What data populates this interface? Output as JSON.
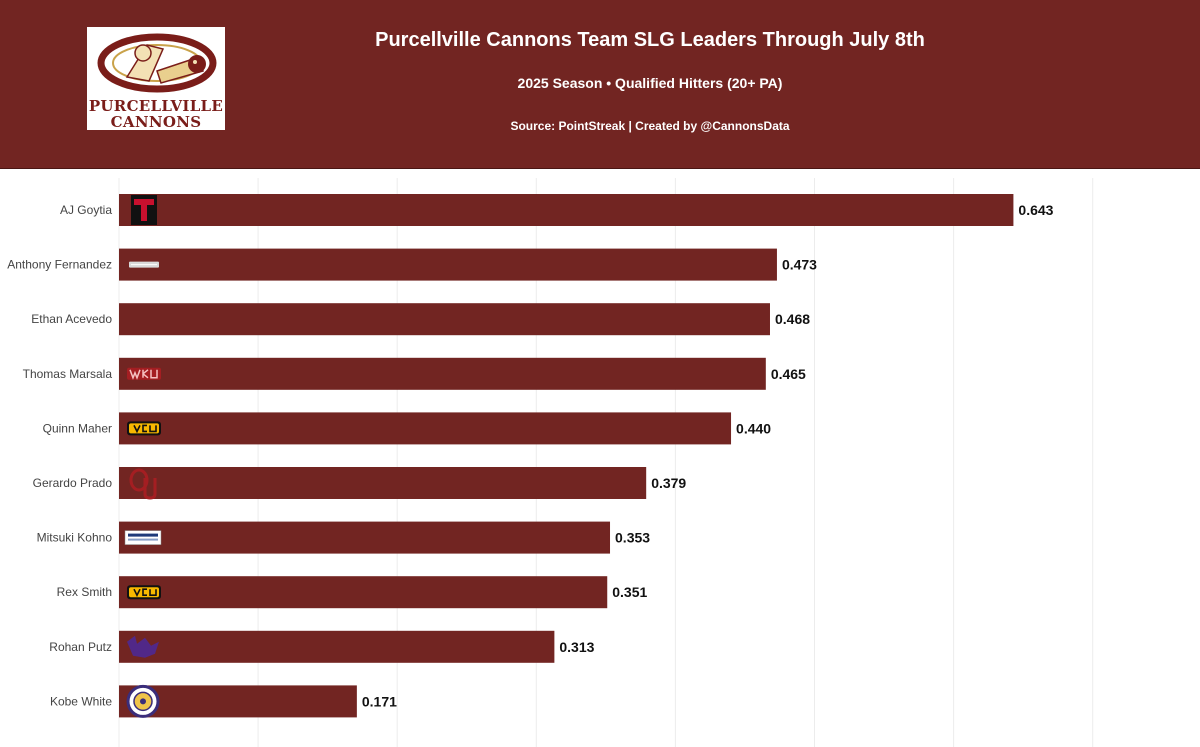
{
  "header": {
    "title": "Purcellville Cannons Team SLG Leaders Through July 8th",
    "subtitle": "2025 Season • Qualified Hitters (20+ PA)",
    "caption": "Source: PointStreak | Created by @CannonsData",
    "logo_line1": "PURCELLVILLE",
    "logo_line2": "CANNONS"
  },
  "colors": {
    "header_bg": "#722522",
    "bar": "#722522",
    "grid": "#ececec"
  },
  "chart_data": {
    "type": "bar",
    "orientation": "horizontal",
    "categories": [
      "AJ Goytia",
      "Anthony Fernandez",
      "Ethan Acevedo",
      "Thomas Marsala",
      "Quinn Maher",
      "Gerardo Prado",
      "Mitsuki Kohno",
      "Rex Smith",
      "Rohan Putz",
      "Kobe White"
    ],
    "values": [
      0.643,
      0.473,
      0.468,
      0.465,
      0.44,
      0.379,
      0.353,
      0.351,
      0.313,
      0.171
    ],
    "value_labels": [
      "0.643",
      "0.473",
      "0.468",
      "0.465",
      "0.440",
      "0.379",
      "0.353",
      "0.351",
      "0.313",
      "0.171"
    ],
    "school_logos": [
      "texas-tech-icon",
      "st-johns-red-storm-icon",
      "",
      "wku-icon",
      "vcu-icon",
      "oklahoma-icon",
      "johnson-icon",
      "vcu-icon",
      "kansas-state-icon",
      "seal-icon"
    ],
    "xlim": [
      0,
      0.7
    ],
    "grid": true
  }
}
